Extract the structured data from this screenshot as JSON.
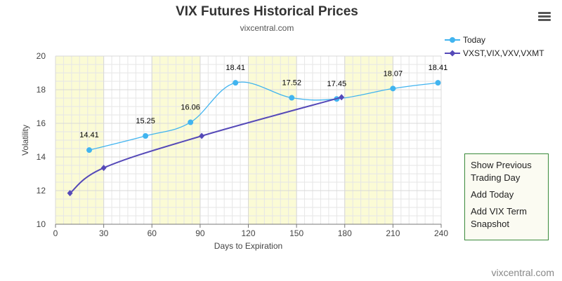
{
  "page": {
    "title": "VIX Futures Historical Prices",
    "subtitle": "vixcentral.com",
    "credits": "vixcentral.com",
    "menu_icon": "hamburger-menu-icon"
  },
  "legend": [
    {
      "label": "Today",
      "color": "#41b4ef",
      "marker": "circle"
    },
    {
      "label": "VXST,VIX,VXV,VXMT",
      "color": "#5549b8",
      "marker": "diamond"
    }
  ],
  "sidebar": {
    "show_previous": [
      "Show Previous",
      "Trading Day"
    ],
    "add_today": "Add Today",
    "add_vix_term": [
      "Add VIX Term",
      "Snapshot"
    ]
  },
  "chart_data": {
    "type": "line",
    "title": "VIX Futures Historical Prices",
    "subtitle": "vixcentral.com",
    "xlabel": "Days to Expiration",
    "ylabel": "Volatility",
    "xlim": [
      0,
      240
    ],
    "ylim": [
      10,
      20
    ],
    "xticks": [
      0,
      30,
      60,
      90,
      120,
      150,
      180,
      210,
      240
    ],
    "yticks": [
      10,
      12,
      14,
      16,
      18,
      20
    ],
    "grid": true,
    "shaded_x_bands": [
      [
        0,
        30
      ],
      [
        60,
        90
      ],
      [
        120,
        150
      ],
      [
        180,
        210
      ]
    ],
    "band_color": "#fbfbd5",
    "legend_position": "top-right",
    "series": [
      {
        "name": "Today",
        "color": "#41b4ef",
        "marker": "circle",
        "smooth": true,
        "x": [
          21,
          56,
          84,
          112,
          147,
          175,
          210,
          238
        ],
        "y": [
          14.41,
          15.25,
          16.06,
          18.41,
          17.52,
          17.45,
          18.07,
          18.41
        ],
        "labels": [
          "14.41",
          "15.25",
          "16.06",
          "18.41",
          "17.52",
          "17.45",
          "18.07",
          "18.41"
        ]
      },
      {
        "name": "VXST,VIX,VXV,VXMT",
        "color": "#5549b8",
        "marker": "diamond",
        "smooth": true,
        "x": [
          9,
          30,
          91,
          178
        ],
        "y": [
          11.85,
          13.35,
          15.25,
          17.55
        ]
      }
    ]
  }
}
